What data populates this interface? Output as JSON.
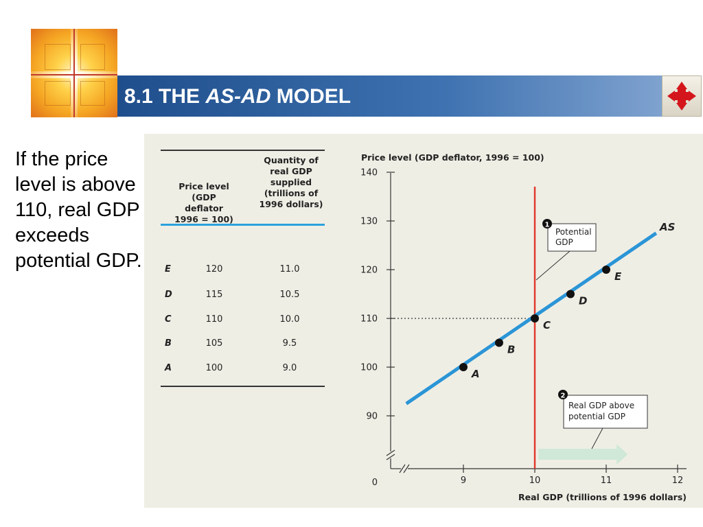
{
  "header": {
    "title_prefix": "8.1 THE ",
    "title_italic": "AS-AD",
    "title_suffix": " MODEL",
    "bar_color": "#2f5f9e",
    "nav_icon": "four-way-arrows-icon"
  },
  "body_text": "If the price level is above 110, real GDP exceeds potential GDP.",
  "table": {
    "headers": [
      "Price level (GDP deflator 1996 = 100)",
      "Quantity of real GDP supplied (trillions of 1996 dollars)"
    ],
    "rows": [
      {
        "label": "E",
        "price": "120",
        "quantity": "11.0"
      },
      {
        "label": "D",
        "price": "115",
        "quantity": "10.5"
      },
      {
        "label": "C",
        "price": "110",
        "quantity": "10.0"
      },
      {
        "label": "B",
        "price": "105",
        "quantity": "9.5"
      },
      {
        "label": "A",
        "price": "100",
        "quantity": "9.0"
      }
    ]
  },
  "chart_data": {
    "type": "line",
    "ylabel": "Price level (GDP deflator, 1996 = 100)",
    "xlabel": "Real GDP (trillions of 1996 dollars)",
    "x_ticks": [
      "9",
      "10",
      "11",
      "12"
    ],
    "y_ticks": [
      "140",
      "130",
      "120",
      "110",
      "100",
      "90"
    ],
    "origin_label": "0",
    "xlim": [
      8.25,
      12
    ],
    "ylim": [
      84,
      140
    ],
    "series": [
      {
        "name": "AS",
        "color": "#2b95d6",
        "x": [
          8.2,
          11.7
        ],
        "y": [
          92.5,
          127.5
        ]
      }
    ],
    "points": [
      {
        "label": "A",
        "x": 9.0,
        "y": 100
      },
      {
        "label": "B",
        "x": 9.5,
        "y": 105
      },
      {
        "label": "C",
        "x": 10.0,
        "y": 110
      },
      {
        "label": "D",
        "x": 10.5,
        "y": 115
      },
      {
        "label": "E",
        "x": 11.0,
        "y": 120
      }
    ],
    "potential_gdp": {
      "x": 10.0,
      "color": "#e03a2e"
    },
    "reference_line": {
      "y": 110,
      "style": "dotted"
    },
    "arrow": {
      "from_x": 10.05,
      "to_x": 11.3,
      "color": "#cfe8d8"
    },
    "annotations": [
      {
        "num": "1",
        "text_lines": [
          "Potential",
          "GDP"
        ]
      },
      {
        "num": "2",
        "text_lines": [
          "Real GDP above",
          "potential GDP"
        ]
      }
    ]
  }
}
